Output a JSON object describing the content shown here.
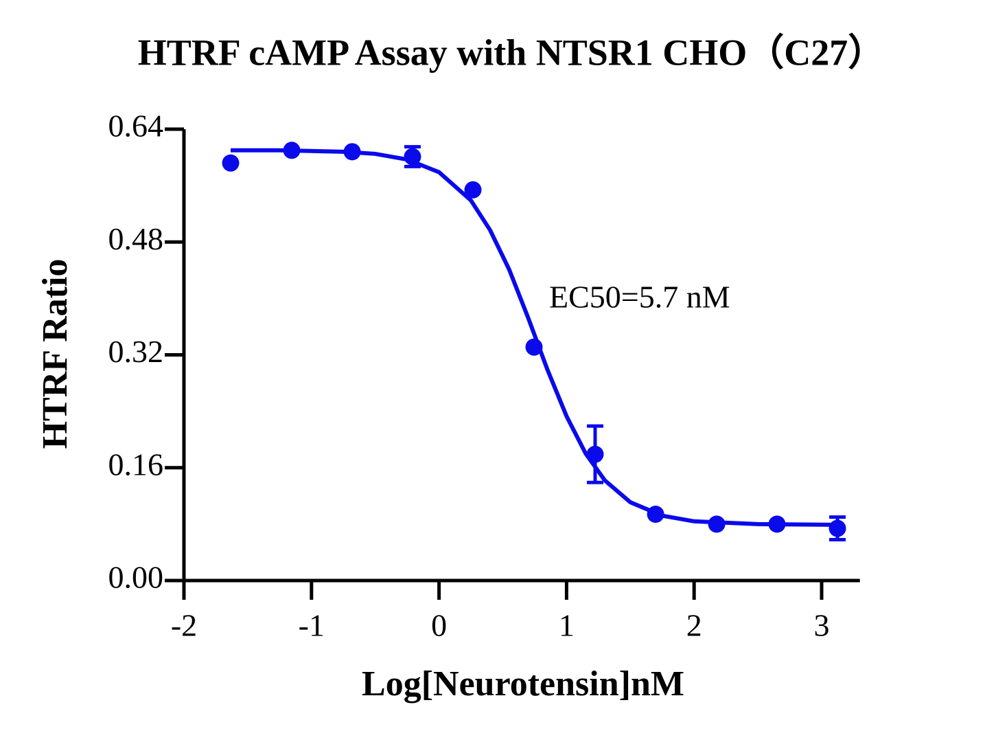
{
  "chart_data": {
    "type": "scatter",
    "title": "HTRF cAMP Assay with NTSR1 CHO（C27）",
    "x_label": "Log[Neurotensin]nM",
    "y_label": "HTRF Ratio",
    "annotation": "EC50=5.7 nM",
    "xlim": [
      -2,
      3.3
    ],
    "xticks": [
      -2,
      -1,
      0,
      1,
      2,
      3
    ],
    "ylim": [
      0,
      0.64
    ],
    "yticks": [
      {
        "value": 0,
        "label": "0.00"
      },
      {
        "value": 0.16,
        "label": "0.16"
      },
      {
        "value": 0.32,
        "label": "0.32"
      },
      {
        "value": 0.48,
        "label": "0.48"
      },
      {
        "value": 0.64,
        "label": "0.64"
      }
    ],
    "series": [
      {
        "color": "#0a0aeb",
        "x": [
          -1.634,
          -1.155,
          -0.681,
          -0.208,
          0.266,
          0.745,
          1.224,
          1.698,
          2.177,
          2.65,
          3.124
        ],
        "values": [
          0.592,
          0.61,
          0.608,
          0.601,
          0.554,
          0.331,
          0.179,
          0.094,
          0.08,
          0.08,
          0.074
        ],
        "errors": [
          null,
          null,
          null,
          0.014,
          null,
          null,
          0.04,
          null,
          null,
          null,
          0.016
        ]
      }
    ],
    "fit": {
      "color": "#0a0aeb",
      "x": [
        -1.634,
        -1.25,
        -0.75,
        -0.5,
        -0.25,
        0,
        0.25,
        0.4,
        0.55,
        0.7,
        0.85,
        1.0,
        1.15,
        1.3,
        1.5,
        1.75,
        2.0,
        2.5,
        3.124
      ],
      "values": [
        0.61,
        0.61,
        0.608,
        0.605,
        0.597,
        0.579,
        0.539,
        0.497,
        0.441,
        0.372,
        0.299,
        0.233,
        0.18,
        0.142,
        0.111,
        0.092,
        0.084,
        0.08,
        0.079
      ]
    }
  }
}
